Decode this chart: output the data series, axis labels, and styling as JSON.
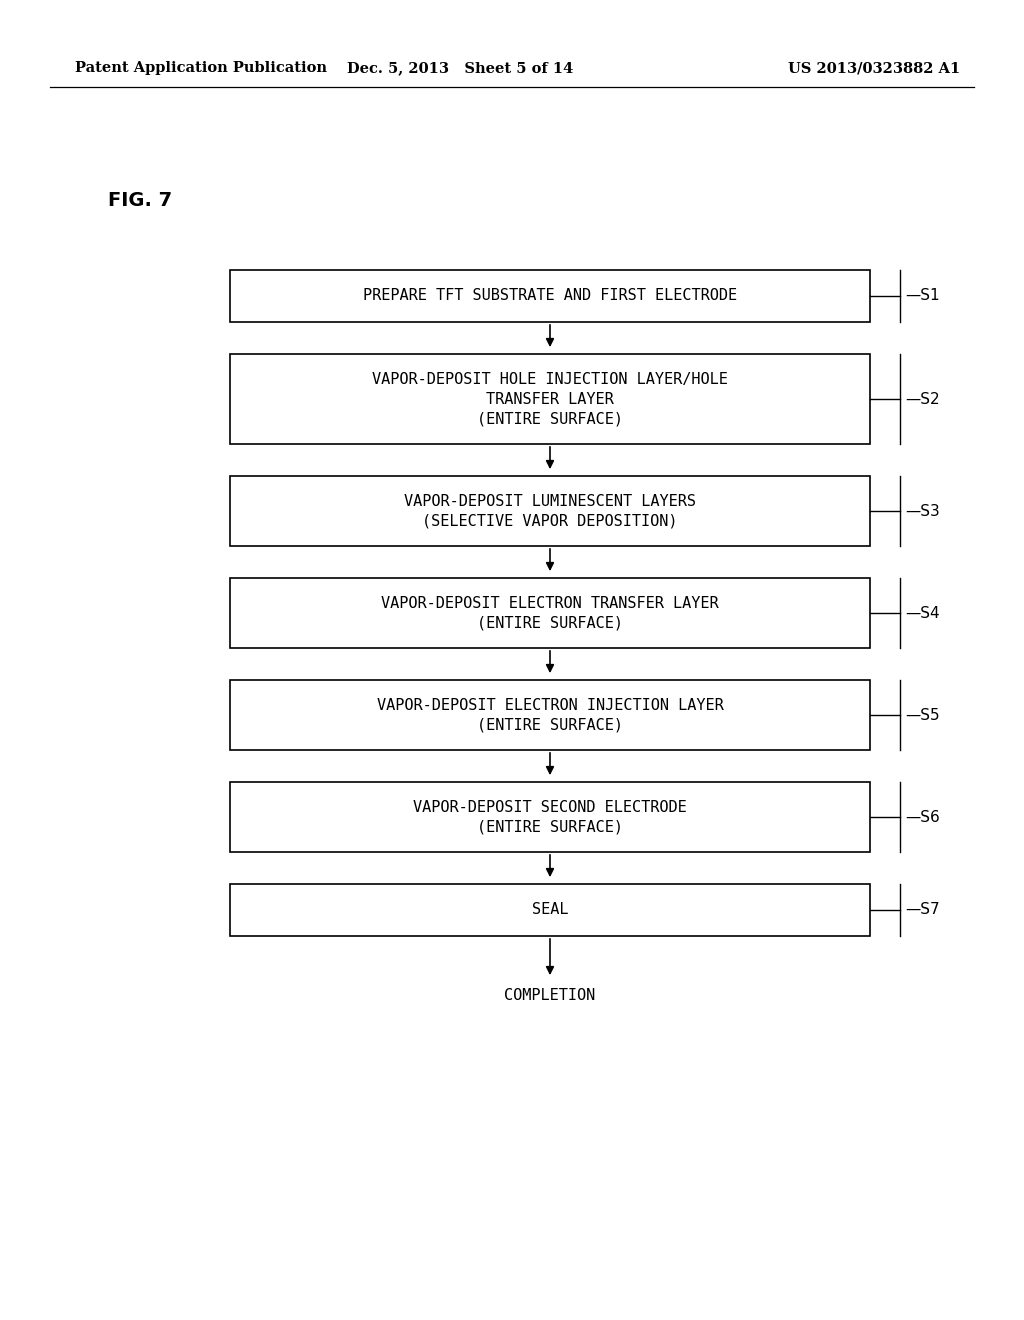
{
  "fig_label": "FIG. 7",
  "header_left": "Patent Application Publication",
  "header_mid": "Dec. 5, 2013   Sheet 5 of 14",
  "header_right": "US 2013/0323882 A1",
  "background_color": "#ffffff",
  "boxes": [
    {
      "lines": [
        "PREPARE TFT SUBSTRATE AND FIRST ELECTRODE"
      ],
      "label": "S1",
      "n_lines": 1
    },
    {
      "lines": [
        "VAPOR-DEPOSIT HOLE INJECTION LAYER/HOLE",
        "TRANSFER LAYER",
        "(ENTIRE SURFACE)"
      ],
      "label": "S2",
      "n_lines": 3
    },
    {
      "lines": [
        "VAPOR-DEPOSIT LUMINESCENT LAYERS",
        "(SELECTIVE VAPOR DEPOSITION)"
      ],
      "label": "S3",
      "n_lines": 2
    },
    {
      "lines": [
        "VAPOR-DEPOSIT ELECTRON TRANSFER LAYER",
        "(ENTIRE SURFACE)"
      ],
      "label": "S4",
      "n_lines": 2
    },
    {
      "lines": [
        "VAPOR-DEPOSIT ELECTRON INJECTION LAYER",
        "(ENTIRE SURFACE)"
      ],
      "label": "S5",
      "n_lines": 2
    },
    {
      "lines": [
        "VAPOR-DEPOSIT SECOND ELECTRODE",
        "(ENTIRE SURFACE)"
      ],
      "label": "S6",
      "n_lines": 2
    },
    {
      "lines": [
        "SEAL"
      ],
      "label": "S7",
      "n_lines": 1
    }
  ],
  "completion_text": "COMPLETION",
  "box_text_color": "#000000",
  "box_edge_color": "#000000",
  "box_fill_color": "#ffffff",
  "arrow_color": "#000000",
  "label_color": "#000000"
}
